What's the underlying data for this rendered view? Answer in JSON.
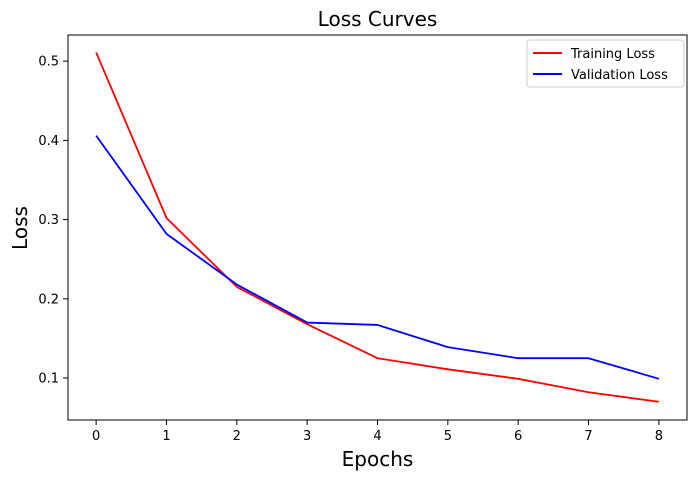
{
  "chart_data": {
    "type": "line",
    "title": "Loss Curves",
    "xlabel": "Epochs",
    "ylabel": "Loss",
    "x": [
      0,
      1,
      2,
      3,
      4,
      5,
      6,
      7,
      8
    ],
    "xlim": [
      -0.4,
      8.4
    ],
    "ylim": [
      0.047,
      0.533
    ],
    "xticks": [
      0,
      1,
      2,
      3,
      4,
      5,
      6,
      7,
      8
    ],
    "yticks": [
      0.1,
      0.2,
      0.3,
      0.4,
      0.5
    ],
    "ytick_labels": [
      "0.1",
      "0.2",
      "0.3",
      "0.4",
      "0.5"
    ],
    "grid": false,
    "legend_position": "top-right",
    "series": [
      {
        "name": "Training Loss",
        "color": "#ff0000",
        "values": [
          0.511,
          0.302,
          0.215,
          0.168,
          0.125,
          0.111,
          0.099,
          0.082,
          0.07
        ]
      },
      {
        "name": "Validation Loss",
        "color": "#0000ff",
        "values": [
          0.406,
          0.282,
          0.218,
          0.17,
          0.167,
          0.139,
          0.125,
          0.125,
          0.099
        ]
      }
    ]
  }
}
